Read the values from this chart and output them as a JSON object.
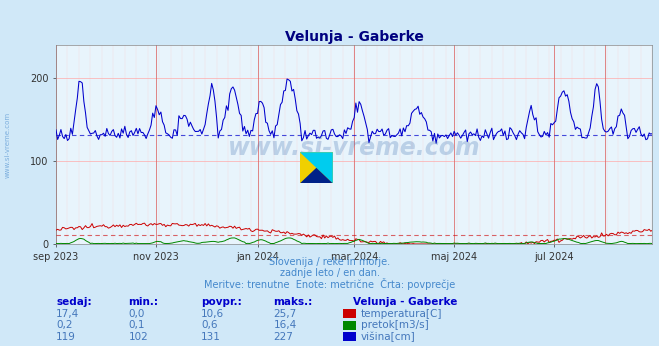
{
  "title": "Velunja - Gaberke",
  "bg_color": "#d0e8f8",
  "plot_bg_color": "#e8f4fc",
  "title_color": "#000080",
  "subtitle_lines": [
    "Slovenija / reke in morje.",
    "zadnje leto / en dan.",
    "Meritve: trenutne  Enote: metrične  Črta: povprečje"
  ],
  "subtitle_color": "#4488cc",
  "xaxis_labels": [
    "sep 2023",
    "nov 2023",
    "jan 2024",
    "mar 2024",
    "maj 2024",
    "jul 2024"
  ],
  "xaxis_positions": [
    0,
    61,
    123,
    182,
    243,
    304
  ],
  "total_days": 365,
  "ylim": [
    0,
    240
  ],
  "yaxis_ticks": [
    0,
    100,
    200
  ],
  "avg_temperatura": 10.6,
  "avg_pretok": 0.6,
  "avg_visina": 131,
  "color_temperatura": "#cc0000",
  "color_pretok": "#008800",
  "color_visina": "#0000cc",
  "vertical_line_color": "#dd6666",
  "vertical_lines_x": [
    0,
    61,
    123,
    182,
    243,
    304,
    335
  ],
  "grid_h_color": "#ffaaaa",
  "grid_v_color": "#ffcccc",
  "table_header_color": "#0000cc",
  "table_value_color": "#4477bb",
  "table_data": {
    "headers": [
      "sedaj:",
      "min.:",
      "povpr.:",
      "maks.:"
    ],
    "rows": [
      {
        "values": [
          "17,4",
          "0,0",
          "10,6",
          "25,7"
        ],
        "label": "temperatura[C]",
        "color": "#cc0000"
      },
      {
        "values": [
          "0,2",
          "0,1",
          "0,6",
          "16,4"
        ],
        "label": "pretok[m3/s]",
        "color": "#008800"
      },
      {
        "values": [
          "119",
          "102",
          "131",
          "227"
        ],
        "label": "višina[cm]",
        "color": "#0000cc"
      }
    ],
    "station": "Velunja - Gaberke"
  }
}
